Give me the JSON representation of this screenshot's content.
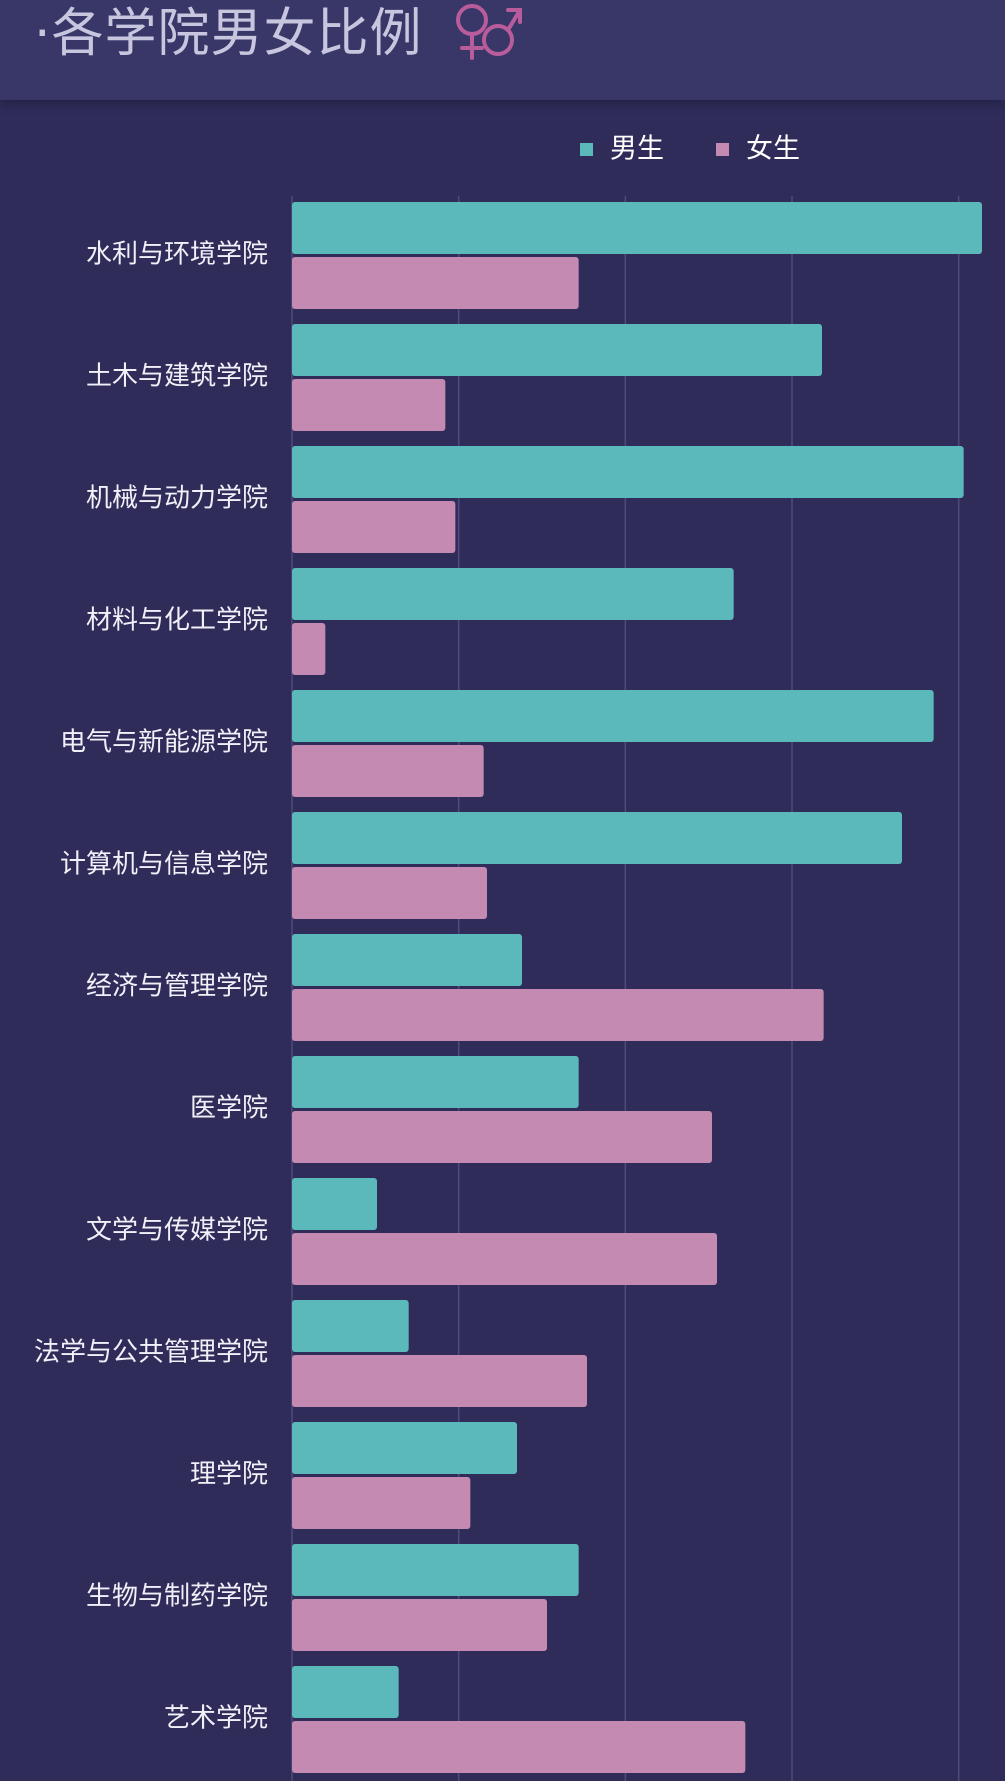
{
  "header": {
    "title": "·各学院男女比例",
    "icon": "venus-mars-icon"
  },
  "colors": {
    "background": "#2f2c5a",
    "header": "#393668",
    "male": "#5bb9bc",
    "female": "#c48ab2",
    "grid": "#4e4a7a",
    "icon": "#b95c9c"
  },
  "chart_data": {
    "type": "bar",
    "orientation": "horizontal",
    "categories": [
      "水利与环境学院",
      "土木与建筑学院",
      "机械与动力学院",
      "材料与化工学院",
      "电气与新能源学院",
      "计算机与信息学院",
      "经济与管理学院",
      "医学院",
      "文学与传媒学院",
      "法学与公共管理学院",
      "理学院",
      "生物与制药学院",
      "艺术学院"
    ],
    "series": [
      {
        "name": "男生",
        "color": "#5bb9bc",
        "values": [
          4.14,
          3.18,
          4.03,
          2.65,
          3.85,
          3.66,
          1.38,
          1.72,
          0.51,
          0.7,
          1.35,
          1.72,
          0.64
        ]
      },
      {
        "name": "女生",
        "color": "#c48ab2",
        "values": [
          1.72,
          0.92,
          0.98,
          0.2,
          1.15,
          1.17,
          3.19,
          2.52,
          2.55,
          1.77,
          1.07,
          1.53,
          2.72
        ]
      }
    ],
    "xlim": [
      0,
      4.2
    ],
    "grid": true,
    "gridlines_at": [
      1,
      2,
      3,
      4
    ],
    "legend_position": "top-right",
    "x_tick_labels_visible": false
  }
}
